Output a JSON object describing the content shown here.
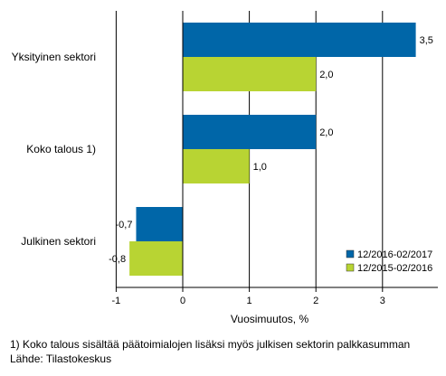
{
  "chart_data": {
    "type": "bar",
    "orientation": "horizontal",
    "categories": [
      "Yksityinen sektori",
      "Koko talous 1)",
      "Julkinen sektori"
    ],
    "series": [
      {
        "name": "12/2016-02/2017",
        "color": "#0066a8",
        "values": [
          3.5,
          2.0,
          -0.7
        ]
      },
      {
        "name": "12/2015-02/2016",
        "color": "#b8d433",
        "values": [
          2.0,
          1.0,
          -0.8
        ]
      }
    ],
    "value_labels": [
      [
        "3,5",
        "2,0",
        "-0,7"
      ],
      [
        "2,0",
        "1,0",
        "-0,8"
      ]
    ],
    "xlim": [
      -1,
      3.8
    ],
    "xticks": [
      -1,
      0,
      1,
      2,
      3
    ],
    "xtick_labels": [
      "-1",
      "0",
      "1",
      "2",
      "3"
    ],
    "xlabel": "Vuosimuutos, %",
    "grid": "vertical",
    "legend_position": "bottom-right"
  },
  "footnote": "1) Koko talous sisältää päätoimialojen lisäksi myös julkisen sektorin palkkasumman",
  "source": "Lähde: Tilastokeskus"
}
